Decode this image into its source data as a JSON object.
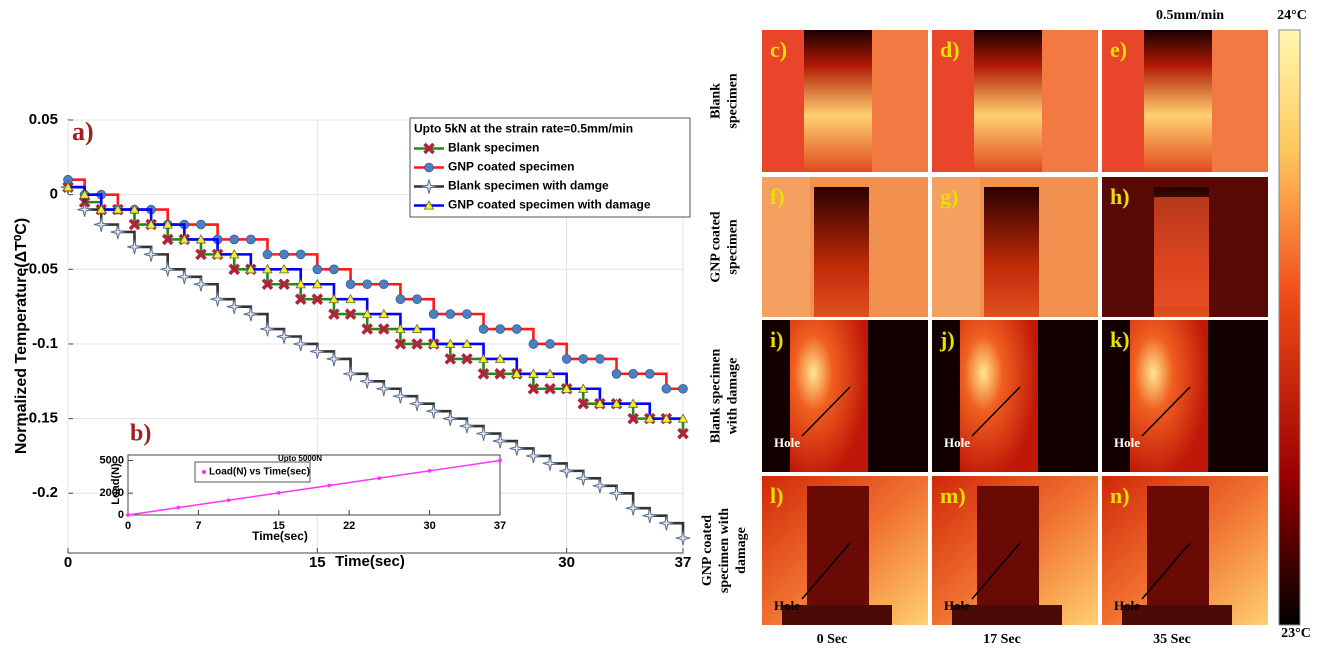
{
  "chart_data": [
    {
      "type": "line",
      "step": true,
      "panel_label": "a)",
      "ylabel": "Normalized Temperature(ΔT⁰C)",
      "xlabel": "Time(sec)",
      "legend_title": "Upto 5kN at the strain rate=0.5mm/min",
      "legend": "upper right",
      "grid": true,
      "xlim": [
        0,
        37
      ],
      "xticks": [
        0,
        15,
        30,
        37
      ],
      "ylim": [
        -0.24,
        0.05
      ],
      "yticks": [
        -0.2,
        -0.15,
        -0.1,
        -0.05,
        0,
        0.05
      ],
      "x": [
        0,
        1,
        2,
        3,
        4,
        5,
        6,
        7,
        8,
        9,
        10,
        11,
        12,
        13,
        14,
        15,
        16,
        17,
        18,
        19,
        20,
        21,
        22,
        23,
        24,
        25,
        26,
        27,
        28,
        29,
        30,
        31,
        32,
        33,
        34,
        35,
        36,
        37
      ],
      "series": [
        {
          "name": "Blank specimen",
          "color": "#1f8a1f",
          "marker": "x",
          "marker_color": "#b0243a",
          "values": [
            0.005,
            -0.005,
            -0.01,
            -0.01,
            -0.02,
            -0.02,
            -0.03,
            -0.03,
            -0.04,
            -0.04,
            -0.05,
            -0.05,
            -0.06,
            -0.06,
            -0.07,
            -0.07,
            -0.08,
            -0.08,
            -0.09,
            -0.09,
            -0.1,
            -0.1,
            -0.1,
            -0.11,
            -0.11,
            -0.12,
            -0.12,
            -0.12,
            -0.13,
            -0.13,
            -0.13,
            -0.14,
            -0.14,
            -0.14,
            -0.15,
            -0.15,
            -0.15,
            -0.16
          ]
        },
        {
          "name": "GNP coated specimen",
          "color": "#ff1a1a",
          "marker": "o",
          "marker_color": "#4a7fc1",
          "values": [
            0.01,
            0,
            0,
            -0.01,
            -0.01,
            -0.01,
            -0.02,
            -0.02,
            -0.02,
            -0.03,
            -0.03,
            -0.03,
            -0.04,
            -0.04,
            -0.04,
            -0.05,
            -0.05,
            -0.06,
            -0.06,
            -0.06,
            -0.07,
            -0.07,
            -0.08,
            -0.08,
            -0.08,
            -0.09,
            -0.09,
            -0.09,
            -0.1,
            -0.1,
            -0.11,
            -0.11,
            -0.11,
            -0.12,
            -0.12,
            -0.12,
            -0.13,
            -0.13
          ]
        },
        {
          "name": "Blank specimen with damge",
          "color": "#333333",
          "marker": "star",
          "marker_color": "#dfe8f5",
          "values": [
            0.005,
            -0.01,
            -0.02,
            -0.025,
            -0.035,
            -0.04,
            -0.05,
            -0.055,
            -0.06,
            -0.07,
            -0.075,
            -0.08,
            -0.09,
            -0.095,
            -0.1,
            -0.105,
            -0.11,
            -0.12,
            -0.125,
            -0.13,
            -0.135,
            -0.14,
            -0.145,
            -0.15,
            -0.155,
            -0.16,
            -0.165,
            -0.17,
            -0.175,
            -0.18,
            -0.185,
            -0.19,
            -0.195,
            -0.2,
            -0.21,
            -0.215,
            -0.22,
            -0.23
          ]
        },
        {
          "name": "GNP coated specimen with damage",
          "color": "#0000ff",
          "marker": "^",
          "marker_color": "#f2ee2e",
          "values": [
            0.005,
            0,
            -0.01,
            -0.01,
            -0.01,
            -0.02,
            -0.02,
            -0.03,
            -0.03,
            -0.04,
            -0.04,
            -0.05,
            -0.05,
            -0.05,
            -0.06,
            -0.06,
            -0.07,
            -0.07,
            -0.08,
            -0.08,
            -0.09,
            -0.09,
            -0.1,
            -0.1,
            -0.1,
            -0.11,
            -0.11,
            -0.12,
            -0.12,
            -0.12,
            -0.13,
            -0.13,
            -0.14,
            -0.14,
            -0.14,
            -0.15,
            -0.15,
            -0.15
          ]
        }
      ]
    },
    {
      "type": "line",
      "step": false,
      "panel_label": "b)",
      "title": "Upto 5000N",
      "ylabel": "Load(N)",
      "xlabel": "Time(sec)",
      "legend": "upper left",
      "grid": false,
      "xlim": [
        0,
        37
      ],
      "xticks": [
        0,
        7,
        15,
        22,
        30,
        37
      ],
      "ylim": [
        0,
        5500
      ],
      "yticks": [
        0,
        2000,
        5000
      ],
      "x": [
        0,
        5,
        10,
        15,
        20,
        25,
        30,
        37
      ],
      "series": [
        {
          "name": "Load(N) vs Time(sec)",
          "color": "#ff33ff",
          "marker": "o",
          "marker_color": "#ff33ff",
          "values": [
            0,
            680,
            1350,
            2030,
            2700,
            3380,
            4050,
            5000
          ]
        }
      ]
    }
  ],
  "thermal": {
    "header": "0.5mm/min",
    "colorbar": {
      "max_label": "24°C",
      "min_label": "23°C"
    },
    "row_labels": [
      [
        "Blank",
        "specimen"
      ],
      [
        "GNP coated",
        "specimen"
      ],
      [
        "Blank specimen",
        "with damage"
      ],
      [
        "GNP coated",
        "specimen with",
        "damage"
      ]
    ],
    "column_labels": [
      "0 Sec",
      "17 Sec",
      "35 Sec"
    ],
    "panels": [
      {
        "label": "c)"
      },
      {
        "label": "d)"
      },
      {
        "label": "e)"
      },
      {
        "label": "f)"
      },
      {
        "label": "g)"
      },
      {
        "label": "h)"
      },
      {
        "label": "i)",
        "annotation": "Hole"
      },
      {
        "label": "j)",
        "annotation": "Hole"
      },
      {
        "label": "k)",
        "annotation": "Hole"
      },
      {
        "label": "l)",
        "annotation": "Hole"
      },
      {
        "label": "m)",
        "annotation": "Hole"
      },
      {
        "label": "n)",
        "annotation": "Hole"
      }
    ]
  }
}
